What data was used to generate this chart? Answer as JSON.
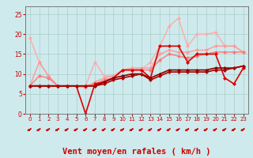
{
  "title": "",
  "xlabel": "Vent moyen/en rafales ( km/h )",
  "ylabel": "",
  "bg_color": "#ceeaec",
  "grid_color": "#aacccc",
  "xlim": [
    -0.5,
    23.5
  ],
  "ylim": [
    0,
    27
  ],
  "yticks": [
    0,
    5,
    10,
    15,
    20,
    25
  ],
  "xticks": [
    0,
    1,
    2,
    3,
    4,
    5,
    6,
    7,
    8,
    9,
    10,
    11,
    12,
    13,
    14,
    15,
    16,
    17,
    18,
    19,
    20,
    21,
    22,
    23
  ],
  "series": [
    {
      "x": [
        0,
        1,
        2,
        3,
        4,
        5,
        6,
        7,
        8,
        9,
        10,
        11,
        12,
        13,
        14,
        15,
        16,
        17,
        18,
        19,
        20,
        21,
        22,
        23
      ],
      "y": [
        19,
        13,
        9.5,
        7,
        7,
        7,
        7,
        13,
        9.5,
        9.5,
        11,
        11,
        11,
        13,
        17,
        22,
        24,
        17,
        20,
        20,
        20.5,
        17,
        17,
        15.5
      ],
      "color": "#ffaaaa",
      "linewidth": 1.0,
      "marker": "D",
      "markersize": 2.0
    },
    {
      "x": [
        0,
        1,
        2,
        3,
        4,
        5,
        6,
        7,
        8,
        9,
        10,
        11,
        12,
        13,
        14,
        15,
        16,
        17,
        18,
        19,
        20,
        21,
        22,
        23
      ],
      "y": [
        7,
        13,
        9.5,
        7,
        7,
        7,
        6.5,
        8,
        9,
        9.5,
        11,
        11.5,
        11.5,
        11.5,
        15,
        16,
        15.5,
        15.5,
        16,
        16,
        17,
        17,
        17,
        15.5
      ],
      "color": "#ff9999",
      "linewidth": 1.0,
      "marker": "D",
      "markersize": 2.0
    },
    {
      "x": [
        0,
        1,
        2,
        3,
        4,
        5,
        6,
        7,
        8,
        9,
        10,
        11,
        12,
        13,
        14,
        15,
        16,
        17,
        18,
        19,
        20,
        21,
        22,
        23
      ],
      "y": [
        7,
        9.5,
        9,
        7,
        7,
        7,
        7,
        7.5,
        8.5,
        9,
        11,
        11,
        11,
        11,
        13.5,
        15,
        14.5,
        14,
        14.5,
        15,
        15.5,
        15.5,
        15.5,
        15.5
      ],
      "color": "#ff7777",
      "linewidth": 1.0,
      "marker": "D",
      "markersize": 2.0
    },
    {
      "x": [
        0,
        1,
        2,
        3,
        4,
        5,
        6,
        7,
        8,
        9,
        10,
        11,
        12,
        13,
        14,
        15,
        16,
        17,
        18,
        19,
        20,
        21,
        22,
        23
      ],
      "y": [
        7,
        7,
        7,
        7,
        7,
        7,
        0,
        7.5,
        8,
        9,
        11,
        11,
        11,
        9,
        17,
        17,
        17,
        13,
        15,
        15,
        15,
        9,
        7.5,
        11.5
      ],
      "color": "#dd0000",
      "linewidth": 1.2,
      "marker": "D",
      "markersize": 2.0
    },
    {
      "x": [
        0,
        1,
        2,
        3,
        4,
        5,
        6,
        7,
        8,
        9,
        10,
        11,
        12,
        13,
        14,
        15,
        16,
        17,
        18,
        19,
        20,
        21,
        22,
        23
      ],
      "y": [
        7,
        7,
        7,
        7,
        7,
        7,
        7,
        7,
        8,
        9,
        9.5,
        10,
        10,
        9,
        10,
        11,
        11,
        11,
        11,
        11,
        11.5,
        11.5,
        11.5,
        12
      ],
      "color": "#880000",
      "linewidth": 1.2,
      "marker": "D",
      "markersize": 2.0
    },
    {
      "x": [
        0,
        1,
        2,
        3,
        4,
        5,
        6,
        7,
        8,
        9,
        10,
        11,
        12,
        13,
        14,
        15,
        16,
        17,
        18,
        19,
        20,
        21,
        22,
        23
      ],
      "y": [
        7,
        7,
        7,
        7,
        7,
        7,
        7,
        7,
        7.5,
        8.5,
        9,
        9.5,
        10,
        8.5,
        9.5,
        10.5,
        10.5,
        10.5,
        10.5,
        10.5,
        11,
        11,
        11.5,
        12
      ],
      "color": "#aa0000",
      "linewidth": 1.2,
      "marker": "D",
      "markersize": 2.0
    }
  ],
  "arrow_color": "#cc0000",
  "xlabel_color": "#cc0000",
  "xlabel_fontsize": 7.5,
  "tick_label_color": "#cc0000",
  "ytick_label_color": "#cc0000"
}
